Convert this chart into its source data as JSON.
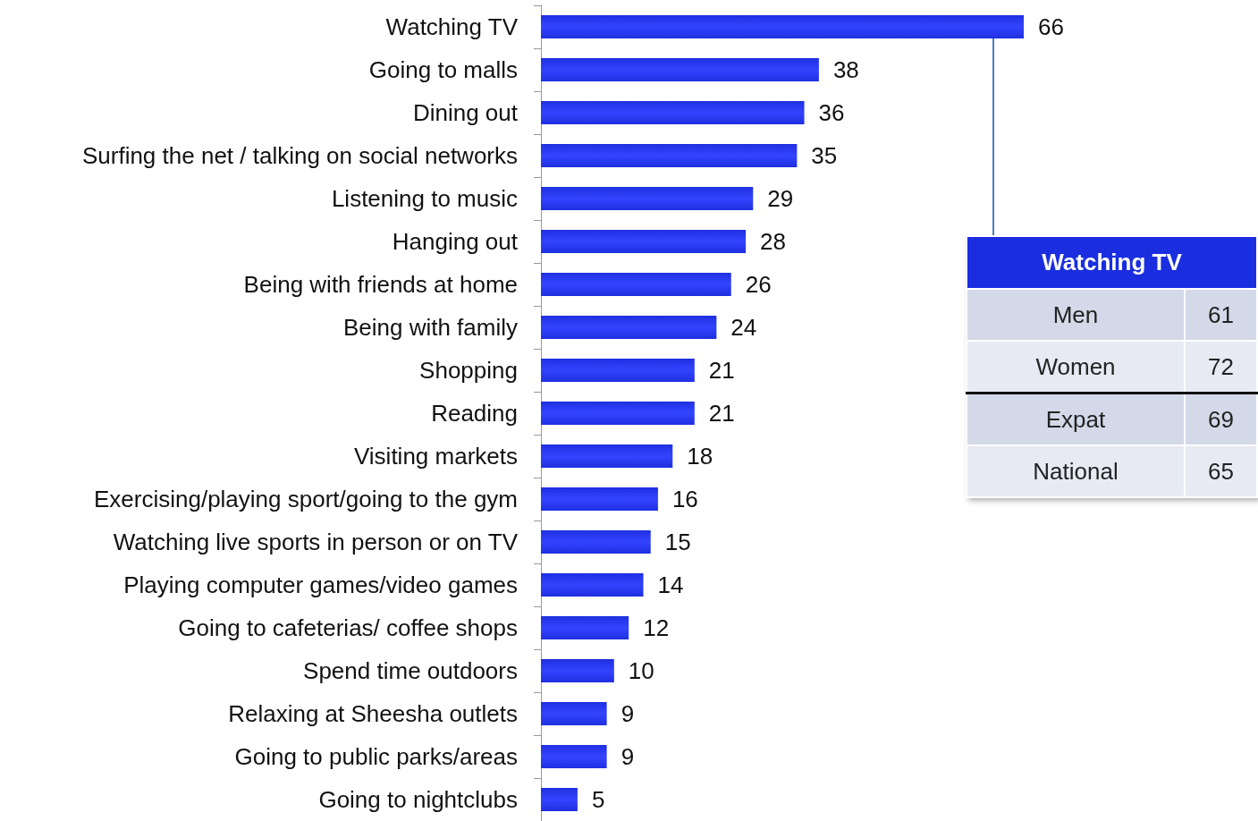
{
  "chart_data": [
    {
      "type": "bar",
      "orientation": "horizontal",
      "data_labels": true,
      "grid": false,
      "color": "#1f2fe0",
      "categories": [
        "Watching TV",
        "Going to malls",
        "Dining out",
        "Surfing the net / talking on social networks",
        "Listening to music",
        "Hanging out",
        "Being with friends at home",
        "Being with family",
        "Shopping",
        "Reading",
        "Visiting markets",
        "Exercising/playing sport/going to the gym",
        "Watching live sports in person or on TV",
        "Playing computer games/video games",
        "Going to cafeterias/ coffee shops",
        "Spend time outdoors",
        "Relaxing at Sheesha outlets",
        "Going to public parks/areas",
        "Going to nightclubs"
      ],
      "values": [
        66,
        38,
        36,
        35,
        29,
        28,
        26,
        24,
        21,
        21,
        18,
        16,
        15,
        14,
        12,
        10,
        9,
        9,
        5
      ]
    },
    {
      "type": "other",
      "title": "Watching TV",
      "categories": [
        "Men",
        "Women",
        "Expat",
        "National"
      ],
      "values": [
        61,
        72,
        69,
        65
      ],
      "data_labels": true
    }
  ]
}
